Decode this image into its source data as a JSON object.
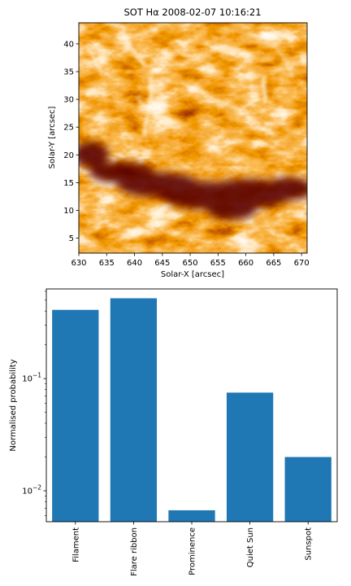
{
  "chart_data": [
    {
      "type": "image",
      "title": "SOT Hα 2008-02-07 10:16:21",
      "xlabel": "Solar-X [arcsec]",
      "ylabel": "Solar-Y [arcsec]",
      "xlim": [
        630,
        671
      ],
      "ylim": [
        2.3,
        43.8
      ],
      "xticks": [
        630,
        635,
        640,
        645,
        650,
        655,
        660,
        665,
        670
      ],
      "yticks": [
        5,
        10,
        15,
        20,
        25,
        30,
        35,
        40
      ],
      "colormap": [
        "#5e0a00",
        "#a32700",
        "#e45300",
        "#f58316",
        "#ffcf84",
        "#fff6e6"
      ]
    },
    {
      "type": "bar",
      "categories": [
        "Filament",
        "Flare ribbon",
        "Prominence",
        "Quiet Sun",
        "Sunspot"
      ],
      "values": [
        0.41,
        0.52,
        0.0067,
        0.075,
        0.02
      ],
      "ylabel": "Normalised probability",
      "xlabel": "",
      "yscale": "log",
      "ylim": [
        0.0053,
        0.63
      ],
      "ytick_labels": [
        {
          "value": 0.1,
          "base": "10",
          "exp": "−1"
        },
        {
          "value": 0.01,
          "base": "10",
          "exp": "−2"
        }
      ],
      "bar_color": "#1f77b4"
    }
  ]
}
